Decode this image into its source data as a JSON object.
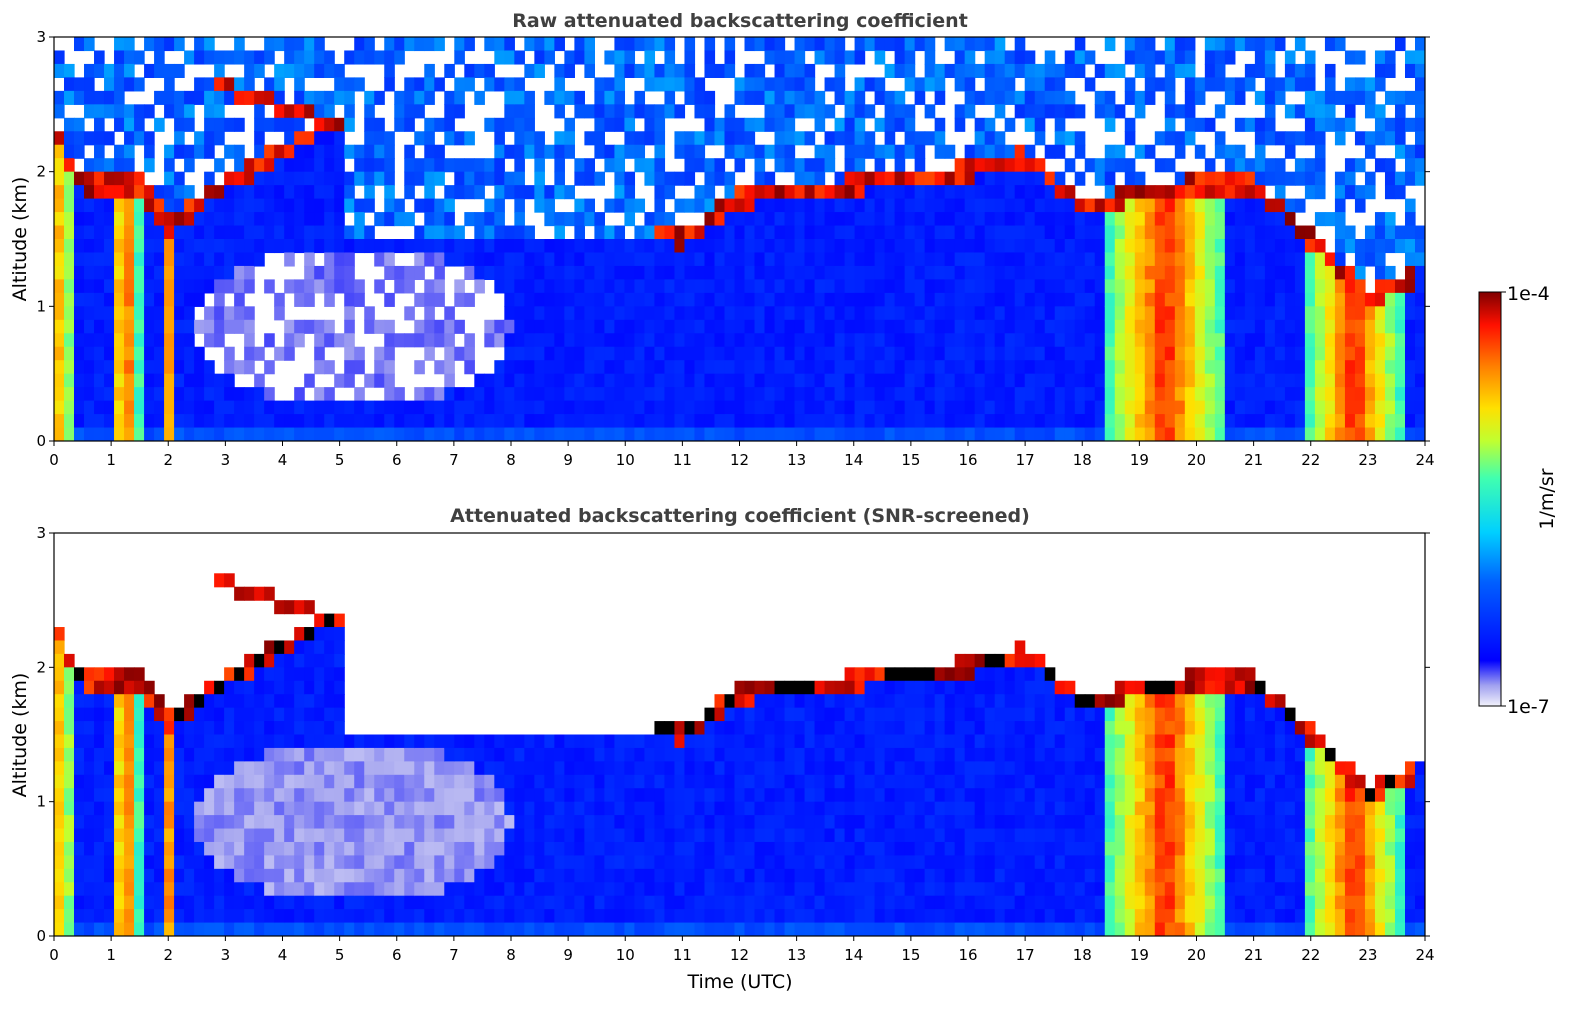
{
  "chart_data": [
    {
      "type": "heatmap",
      "title": "Raw attenuated backscattering coefficient",
      "xlabel": "",
      "ylabel": "Altitude (km)",
      "xlim": [
        0,
        24
      ],
      "ylim": [
        0,
        3
      ],
      "x_ticks": [
        "0",
        "1",
        "2",
        "3",
        "4",
        "5",
        "6",
        "7",
        "8",
        "9",
        "10",
        "11",
        "12",
        "13",
        "14",
        "15",
        "16",
        "17",
        "18",
        "19",
        "20",
        "21",
        "22",
        "23",
        "24"
      ],
      "y_ticks": [
        "0",
        "1",
        "2",
        "3"
      ],
      "screened": false,
      "features": {
        "cloud_layer_tops_km": [
          {
            "t": 0.0,
            "alt": 2.3
          },
          {
            "t": 0.5,
            "alt": 1.9
          },
          {
            "t": 1.5,
            "alt": 1.9
          },
          {
            "t": 2.0,
            "alt": 1.6
          },
          {
            "t": 3.0,
            "alt": 1.9
          },
          {
            "t": 3.0,
            "alt": 2.6
          },
          {
            "t": 4.8,
            "alt": 2.35
          },
          {
            "t": 11.0,
            "alt": 1.5
          },
          {
            "t": 12.0,
            "alt": 1.8
          },
          {
            "t": 14.0,
            "alt": 1.9
          },
          {
            "t": 16.0,
            "alt": 2.0
          },
          {
            "t": 17.0,
            "alt": 2.1
          },
          {
            "t": 18.0,
            "alt": 1.75
          },
          {
            "t": 20.0,
            "alt": 1.9
          },
          {
            "t": 21.0,
            "alt": 1.9
          },
          {
            "t": 22.0,
            "alt": 1.5
          },
          {
            "t": 23.0,
            "alt": 1.05
          },
          {
            "t": 23.7,
            "alt": 1.2
          }
        ],
        "precipitation_shafts_utc": [
          [
            0.0,
            0.3
          ],
          [
            1.0,
            1.5
          ],
          [
            1.95,
            2.05
          ],
          [
            18.4,
            20.5
          ],
          [
            21.9,
            23.6
          ]
        ],
        "clear_air_region": {
          "t": [
            2.5,
            8.0
          ],
          "alt": [
            0.25,
            1.4
          ]
        }
      }
    },
    {
      "type": "heatmap",
      "title": "Attenuated backscattering coefficient (SNR-screened)",
      "xlabel": "Time (UTC)",
      "ylabel": "Altitude (km)",
      "xlim": [
        0,
        24
      ],
      "ylim": [
        0,
        3
      ],
      "x_ticks": [
        "0",
        "1",
        "2",
        "3",
        "4",
        "5",
        "6",
        "7",
        "8",
        "9",
        "10",
        "11",
        "12",
        "13",
        "14",
        "15",
        "16",
        "17",
        "18",
        "19",
        "20",
        "21",
        "22",
        "23",
        "24"
      ],
      "y_ticks": [
        "0",
        "1",
        "2",
        "3"
      ],
      "screened": true
    }
  ],
  "colorbar": {
    "label": "1/m/sr",
    "max_label": "1e-4",
    "min_label": "1e-7",
    "colormap": "jet",
    "scale": "log",
    "range": [
      1e-07,
      0.0001
    ]
  }
}
